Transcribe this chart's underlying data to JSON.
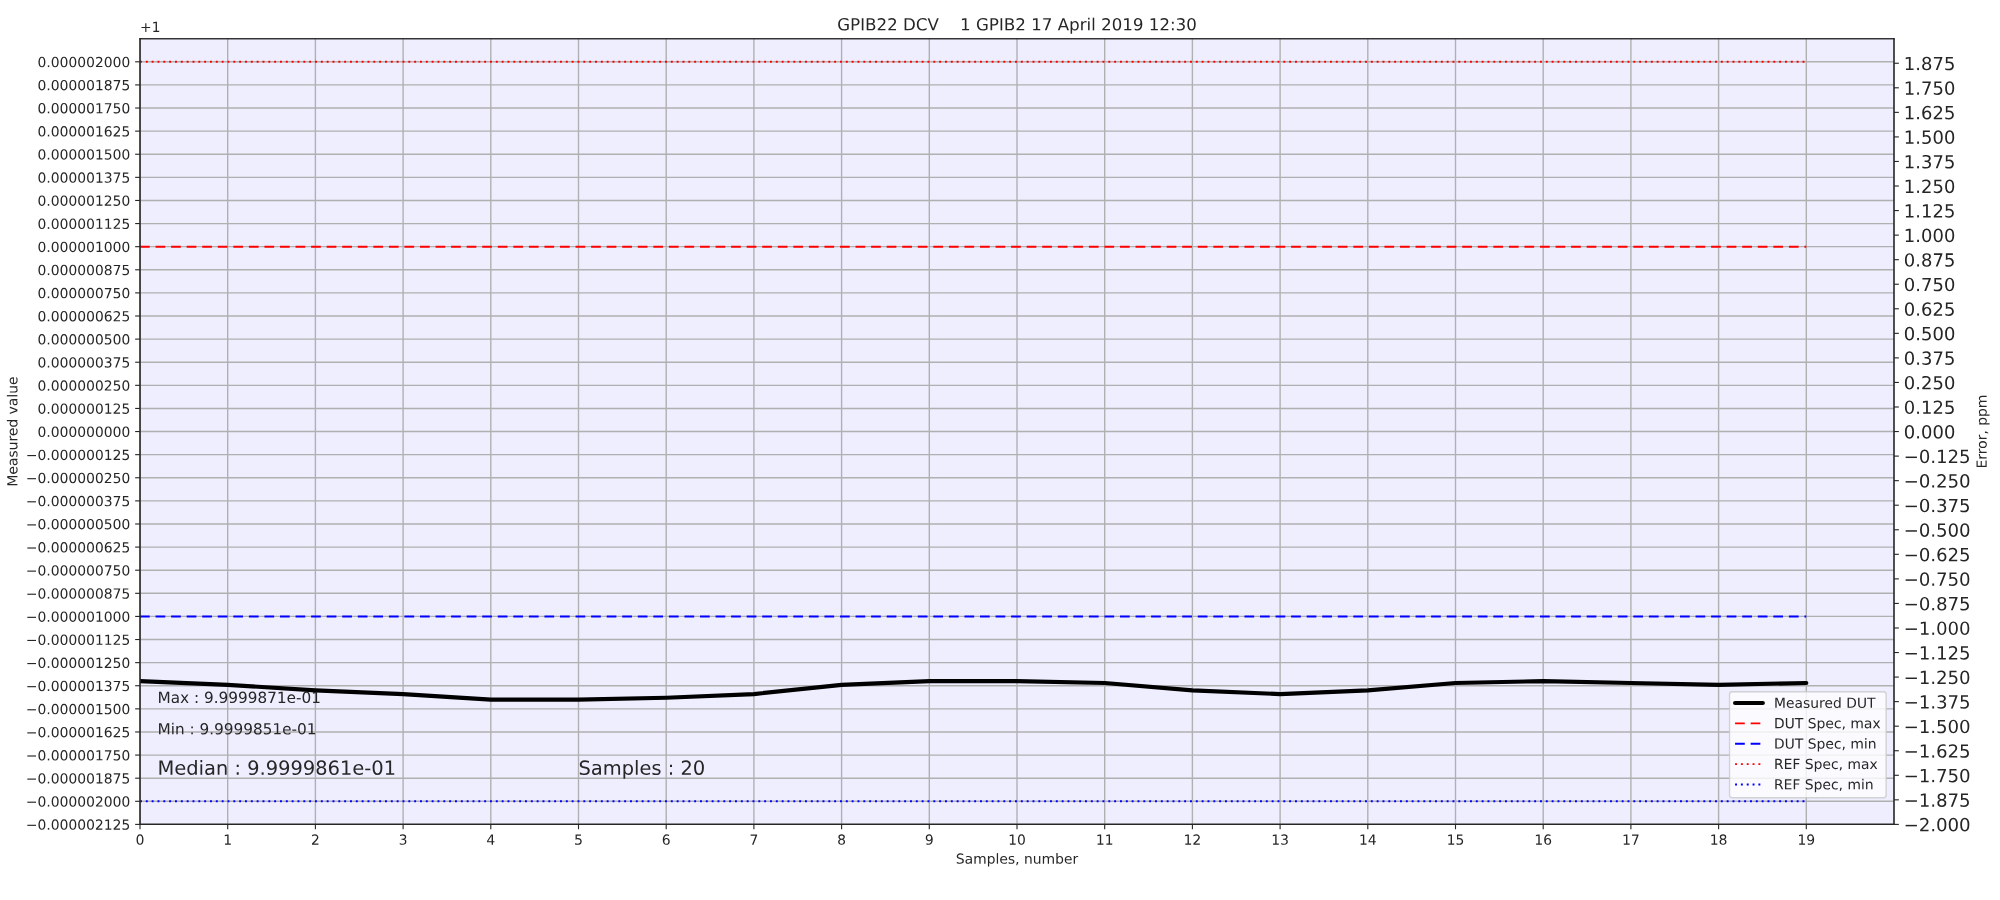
{
  "chart_data": {
    "type": "line",
    "title": "GPIB22 DCV    1 GPIB2 17 April 2019 12:30",
    "xlabel": "Samples, number",
    "ylabel": "Measured value",
    "y2label": "Error, ppm",
    "x": [
      0,
      1,
      2,
      3,
      4,
      5,
      6,
      7,
      8,
      9,
      10,
      11,
      12,
      13,
      14,
      15,
      16,
      17,
      18,
      19
    ],
    "series": [
      {
        "name": "Measured DUT",
        "color": "#000000",
        "line_style": "solid",
        "values": [
          -1.35e-06,
          -1.37e-06,
          -1.4e-06,
          -1.42e-06,
          -1.45e-06,
          -1.45e-06,
          -1.44e-06,
          -1.42e-06,
          -1.37e-06,
          -1.35e-06,
          -1.35e-06,
          -1.36e-06,
          -1.4e-06,
          -1.42e-06,
          -1.4e-06,
          -1.36e-06,
          -1.35e-06,
          -1.36e-06,
          -1.37e-06,
          -1.36e-06
        ]
      },
      {
        "name": "DUT Spec, max",
        "color": "#ff0000",
        "line_style": "dashed",
        "values": [
          1e-06,
          1e-06,
          1e-06,
          1e-06,
          1e-06,
          1e-06,
          1e-06,
          1e-06,
          1e-06,
          1e-06,
          1e-06,
          1e-06,
          1e-06,
          1e-06,
          1e-06,
          1e-06,
          1e-06,
          1e-06,
          1e-06,
          1e-06
        ]
      },
      {
        "name": "DUT Spec, min",
        "color": "#0000ff",
        "line_style": "dashed",
        "values": [
          -1e-06,
          -1e-06,
          -1e-06,
          -1e-06,
          -1e-06,
          -1e-06,
          -1e-06,
          -1e-06,
          -1e-06,
          -1e-06,
          -1e-06,
          -1e-06,
          -1e-06,
          -1e-06,
          -1e-06,
          -1e-06,
          -1e-06,
          -1e-06,
          -1e-06,
          -1e-06
        ]
      },
      {
        "name": "REF Spec, max",
        "color": "#ff0000",
        "line_style": "dotted",
        "values": [
          2e-06,
          2e-06,
          2e-06,
          2e-06,
          2e-06,
          2e-06,
          2e-06,
          2e-06,
          2e-06,
          2e-06,
          2e-06,
          2e-06,
          2e-06,
          2e-06,
          2e-06,
          2e-06,
          2e-06,
          2e-06,
          2e-06,
          2e-06
        ]
      },
      {
        "name": "REF Spec, min",
        "color": "#0000ff",
        "line_style": "dotted",
        "values": [
          -2e-06,
          -2e-06,
          -2e-06,
          -2e-06,
          -2e-06,
          -2e-06,
          -2e-06,
          -2e-06,
          -2e-06,
          -2e-06,
          -2e-06,
          -2e-06,
          -2e-06,
          -2e-06,
          -2e-06,
          -2e-06,
          -2e-06,
          -2e-06,
          -2e-06,
          -2e-06
        ]
      }
    ],
    "xlim": [
      0,
      20
    ],
    "xticks": [
      0,
      1,
      2,
      3,
      4,
      5,
      6,
      7,
      8,
      9,
      10,
      11,
      12,
      13,
      14,
      15,
      16,
      17,
      18,
      19
    ],
    "ylim": [
      -2.125e-06,
      2.125e-06
    ],
    "yticks": [
      {
        "value": -2.125e-06,
        "label": "−0.000002125"
      },
      {
        "value": -2e-06,
        "label": "−0.000002000"
      },
      {
        "value": -1.875e-06,
        "label": "−0.000001875"
      },
      {
        "value": -1.75e-06,
        "label": "−0.000001750"
      },
      {
        "value": -1.625e-06,
        "label": "−0.000001625"
      },
      {
        "value": -1.5e-06,
        "label": "−0.000001500"
      },
      {
        "value": -1.375e-06,
        "label": "−0.000001375"
      },
      {
        "value": -1.25e-06,
        "label": "−0.000001250"
      },
      {
        "value": -1.125e-06,
        "label": "−0.000001125"
      },
      {
        "value": -1e-06,
        "label": "−0.000001000"
      },
      {
        "value": -8.75e-07,
        "label": "−0.000000875"
      },
      {
        "value": -7.5e-07,
        "label": "−0.000000750"
      },
      {
        "value": -6.25e-07,
        "label": "−0.000000625"
      },
      {
        "value": -5e-07,
        "label": "−0.000000500"
      },
      {
        "value": -3.75e-07,
        "label": "−0.000000375"
      },
      {
        "value": -2.5e-07,
        "label": "−0.000000250"
      },
      {
        "value": -1.25e-07,
        "label": "−0.000000125"
      },
      {
        "value": 0,
        "label": "0.000000000"
      },
      {
        "value": 1.25e-07,
        "label": "0.000000125"
      },
      {
        "value": 2.5e-07,
        "label": "0.000000250"
      },
      {
        "value": 3.75e-07,
        "label": "0.000000375"
      },
      {
        "value": 5e-07,
        "label": "0.000000500"
      },
      {
        "value": 6.25e-07,
        "label": "0.000000625"
      },
      {
        "value": 7.5e-07,
        "label": "0.000000750"
      },
      {
        "value": 8.75e-07,
        "label": "0.000000875"
      },
      {
        "value": 1e-06,
        "label": "0.000001000"
      },
      {
        "value": 1.125e-06,
        "label": "0.000001125"
      },
      {
        "value": 1.25e-06,
        "label": "0.000001250"
      },
      {
        "value": 1.375e-06,
        "label": "0.000001375"
      },
      {
        "value": 1.5e-06,
        "label": "0.000001500"
      },
      {
        "value": 1.625e-06,
        "label": "0.000001625"
      },
      {
        "value": 1.75e-06,
        "label": "0.000001750"
      },
      {
        "value": 1.875e-06,
        "label": "0.000001875"
      },
      {
        "value": 2e-06,
        "label": "0.000002000"
      }
    ],
    "y2lim": [
      -2.0,
      2.0
    ],
    "y2ticks": [
      {
        "value": -2.0,
        "label": "−2.000"
      },
      {
        "value": -1.875,
        "label": "−1.875"
      },
      {
        "value": -1.75,
        "label": "−1.750"
      },
      {
        "value": -1.625,
        "label": "−1.625"
      },
      {
        "value": -1.5,
        "label": "−1.500"
      },
      {
        "value": -1.375,
        "label": "−1.375"
      },
      {
        "value": -1.25,
        "label": "−1.250"
      },
      {
        "value": -1.125,
        "label": "−1.125"
      },
      {
        "value": -1.0,
        "label": "−1.000"
      },
      {
        "value": -0.875,
        "label": "−0.875"
      },
      {
        "value": -0.75,
        "label": "−0.750"
      },
      {
        "value": -0.625,
        "label": "−0.625"
      },
      {
        "value": -0.5,
        "label": "−0.500"
      },
      {
        "value": -0.375,
        "label": "−0.375"
      },
      {
        "value": -0.25,
        "label": "−0.250"
      },
      {
        "value": -0.125,
        "label": "−0.125"
      },
      {
        "value": 0,
        "label": "0.000"
      },
      {
        "value": 0.125,
        "label": "0.125"
      },
      {
        "value": 0.25,
        "label": "0.250"
      },
      {
        "value": 0.375,
        "label": "0.375"
      },
      {
        "value": 0.5,
        "label": "0.500"
      },
      {
        "value": 0.625,
        "label": "0.625"
      },
      {
        "value": 0.75,
        "label": "0.750"
      },
      {
        "value": 0.875,
        "label": "0.875"
      },
      {
        "value": 1.0,
        "label": "1.000"
      },
      {
        "value": 1.125,
        "label": "1.125"
      },
      {
        "value": 1.25,
        "label": "1.250"
      },
      {
        "value": 1.375,
        "label": "1.375"
      },
      {
        "value": 1.5,
        "label": "1.500"
      },
      {
        "value": 1.625,
        "label": "1.625"
      },
      {
        "value": 1.75,
        "label": "1.750"
      },
      {
        "value": 1.875,
        "label": "1.875"
      }
    ],
    "annotations": [
      "+1",
      "Max : 9.9999871e-01",
      "Min : 9.9999851e-01",
      "Median : 9.9999861e-01",
      "Samples : 20"
    ],
    "grid": true,
    "legend": "bottom right",
    "marker": "none"
  }
}
